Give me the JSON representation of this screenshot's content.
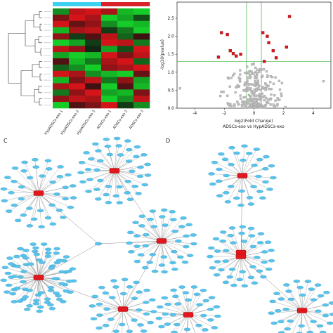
{
  "panels": {
    "c": "C",
    "d": "D"
  },
  "heatmap": {
    "samples": [
      "HypADSCs-exo 1",
      "HypADSCs-exo 2",
      "HypADSCs-exo 3",
      "ADSCs-exo 1",
      "ADSCs-exo 2",
      "ADSCs-exo 3"
    ],
    "group_colors": [
      "#3fd2ee",
      "#3fd2ee",
      "#3fd2ee",
      "#d8232a",
      "#d8232a",
      "#d8232a"
    ],
    "matrix": [
      [
        -0.6,
        0.8,
        0.9,
        0.7,
        -0.8,
        -0.9
      ],
      [
        0.5,
        0.9,
        0.7,
        -0.9,
        -0.7,
        -0.3
      ],
      [
        0.9,
        0.4,
        0.6,
        -0.6,
        -0.9,
        -0.8
      ],
      [
        -0.8,
        0.7,
        0.8,
        -0.2,
        -0.5,
        -0.9
      ],
      [
        0.6,
        -0.2,
        0.3,
        0.8,
        -0.4,
        0.2
      ],
      [
        -0.9,
        -0.7,
        -0.2,
        0.9,
        0.8,
        -0.5
      ],
      [
        0.8,
        0.6,
        -0.1,
        -0.7,
        -0.3,
        0.9
      ],
      [
        -0.7,
        -0.9,
        -0.8,
        0.9,
        0.5,
        0.8
      ],
      [
        0.3,
        -0.8,
        -0.5,
        0.7,
        0.9,
        -0.4
      ],
      [
        -0.4,
        -0.6,
        -0.9,
        0.6,
        0.7,
        0.9
      ],
      [
        0.9,
        0.7,
        -0.6,
        -0.8,
        -0.9,
        0.4
      ],
      [
        -0.8,
        0.5,
        0.8,
        -0.5,
        0.6,
        -0.7
      ],
      [
        0.7,
        0.9,
        0.2,
        -0.9,
        0.3,
        -0.8
      ],
      [
        -0.5,
        0.6,
        0.9,
        -0.7,
        -0.8,
        0.5
      ],
      [
        0.6,
        0.8,
        0.7,
        -0.9,
        -0.6,
        0.8
      ],
      [
        -0.9,
        0.3,
        0.5,
        0.9,
        -0.2,
        -0.6
      ]
    ],
    "colors": {
      "up": "#e8151b",
      "down": "#16e12a",
      "mid": "#111111"
    }
  },
  "volcano": {
    "xlabel": "log2(Fold Change)",
    "ylabel": "-log10(pvalue)",
    "subtitle": "ADSCs-exo vs HypADSCs-exo",
    "xlim": [
      -5.2,
      5.2
    ],
    "ylim": [
      0,
      2.95
    ],
    "xticks": [
      -4,
      -2,
      0,
      2,
      4
    ],
    "yticks": [
      0.0,
      0.5,
      1.0,
      1.5,
      2.0,
      2.5
    ],
    "threshold_p": 1.3,
    "threshold_fc": [
      -0.5,
      0.5
    ],
    "threshold_color": "#3cb33c",
    "sig_color": "#d8141c",
    "ns_color": "#bdbdbd",
    "significant": [
      [
        -2.2,
        2.1
      ],
      [
        -1.8,
        2.05
      ],
      [
        -1.6,
        1.6
      ],
      [
        -1.4,
        1.52
      ],
      [
        -1.2,
        1.45
      ],
      [
        -2.4,
        1.42
      ],
      [
        -0.9,
        1.5
      ],
      [
        0.6,
        2.1
      ],
      [
        0.9,
        2.0
      ],
      [
        1.0,
        1.82
      ],
      [
        1.3,
        1.6
      ],
      [
        1.5,
        1.4
      ],
      [
        2.2,
        1.7
      ],
      [
        2.4,
        2.55
      ],
      [
        0.7,
        1.3
      ]
    ],
    "nonsignificant_count": 260
  },
  "networks": {
    "node_fill": "#58c4ec",
    "node_stroke": "#2d8ab6",
    "hub_color": "#e2161c",
    "edge_color": "#8a8a8a",
    "hubs_c": [
      {
        "id": "c1",
        "n": 40
      },
      {
        "id": "c2",
        "n": 44
      },
      {
        "id": "c3",
        "n": 42
      },
      {
        "id": "c4",
        "n": 38
      },
      {
        "id": "c5",
        "n": 40
      },
      {
        "id": "c6",
        "n": 36
      },
      {
        "id": "c7",
        "n": 38
      }
    ],
    "hubs_d": [
      {
        "id": "d1",
        "n": 36
      },
      {
        "id": "d2",
        "n": 42
      },
      {
        "id": "d3",
        "n": 38
      }
    ]
  }
}
